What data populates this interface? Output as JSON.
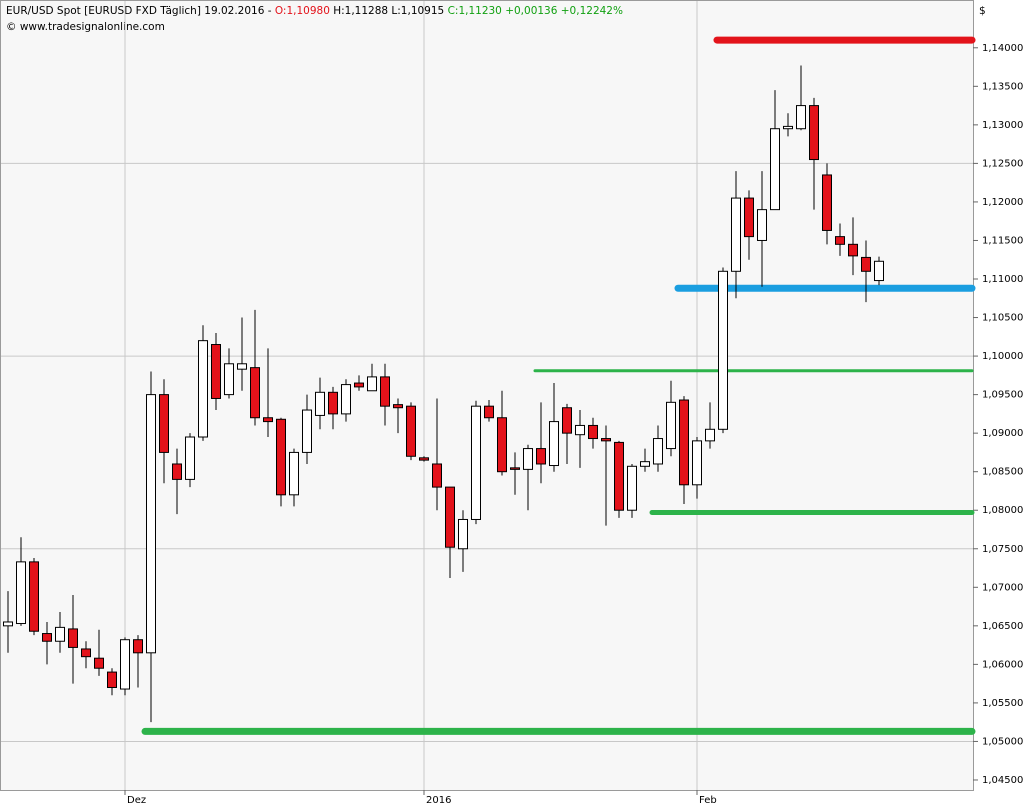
{
  "chart_data": {
    "type": "candlestick",
    "title_parts": [
      {
        "text": "EUR/USD Spot [EURUSD FXD  Täglich] 19.02.2016 - ",
        "color": "#000000"
      },
      {
        "text": "O:1,10980",
        "color": "#e3121a"
      },
      {
        "text": " H:1,11288 L:1,10915 ",
        "color": "#000000"
      },
      {
        "text": "C:1,11230 +0,00136 +0,12242%",
        "color": "#11a011"
      }
    ],
    "subtitle": "© www.tradesignalonline.com",
    "y_unit": "$",
    "categories": [
      null,
      null,
      null,
      null,
      null,
      null,
      null,
      null,
      null,
      "Dez",
      null,
      null,
      null,
      null,
      null,
      null,
      null,
      null,
      null,
      null,
      null,
      null,
      null,
      null,
      null,
      null,
      null,
      null,
      null,
      null,
      null,
      null,
      "2016",
      null,
      null,
      null,
      null,
      null,
      null,
      null,
      null,
      null,
      null,
      null,
      null,
      null,
      null,
      null,
      null,
      null,
      null,
      null,
      null,
      "Feb",
      null,
      null,
      null,
      null,
      null,
      null,
      null,
      null,
      null,
      null,
      null,
      null,
      null,
      null
    ],
    "open": [
      1.065,
      1.0653,
      1.0733,
      1.064,
      1.063,
      1.0646,
      1.062,
      1.0608,
      1.059,
      1.0568,
      1.0632,
      1.0615,
      1.095,
      1.086,
      1.084,
      1.0895,
      1.1015,
      1.095,
      1.0983,
      1.0985,
      1.092,
      1.0918,
      1.082,
      1.0875,
      1.0923,
      1.0953,
      1.0925,
      1.0965,
      1.0955,
      1.0973,
      1.0937,
      1.0935,
      1.0868,
      1.086,
      1.083,
      1.075,
      1.0788,
      1.0935,
      1.092,
      1.0855,
      1.0853,
      1.088,
      1.0858,
      1.0933,
      1.0898,
      1.091,
      1.0893,
      1.0888,
      1.08,
      1.0857,
      1.086,
      1.088,
      1.0943,
      1.0833,
      1.089,
      1.0905,
      1.111,
      1.1205,
      1.115,
      1.119,
      1.1295,
      1.1295,
      1.1325,
      1.1235,
      1.1155,
      1.1145,
      1.1128,
      1.1098
    ],
    "high": [
      1.0695,
      1.0765,
      1.0738,
      1.0655,
      1.0668,
      1.069,
      1.063,
      1.0645,
      1.0595,
      1.0635,
      1.0638,
      1.098,
      1.097,
      1.088,
      1.09,
      1.104,
      1.103,
      1.101,
      1.105,
      1.106,
      1.101,
      1.092,
      1.088,
      1.095,
      1.0972,
      1.096,
      1.097,
      1.0975,
      1.099,
      1.099,
      1.0945,
      1.094,
      1.087,
      1.0945,
      1.083,
      1.08,
      1.0942,
      1.0943,
      1.0955,
      1.0875,
      1.0885,
      1.094,
      1.0965,
      1.0938,
      1.093,
      1.092,
      1.091,
      1.089,
      1.086,
      1.088,
      1.091,
      1.0968,
      1.0948,
      1.0895,
      1.094,
      1.1115,
      1.124,
      1.1215,
      1.124,
      1.1345,
      1.1315,
      1.1377,
      1.1335,
      1.125,
      1.1172,
      1.118,
      1.115,
      1.1129
    ],
    "low": [
      1.0615,
      1.065,
      1.0638,
      1.06,
      1.0615,
      1.0575,
      1.0595,
      1.0585,
      1.056,
      1.056,
      1.057,
      1.0525,
      1.0835,
      1.0795,
      1.083,
      1.089,
      1.093,
      1.0945,
      1.0955,
      1.091,
      1.0895,
      1.0805,
      1.0805,
      1.086,
      1.0905,
      1.0905,
      1.0915,
      1.0955,
      1.0955,
      1.091,
      1.09,
      1.0865,
      1.0863,
      1.08,
      1.0712,
      1.072,
      1.0782,
      1.0915,
      1.0845,
      1.082,
      1.08,
      1.0835,
      1.085,
      1.086,
      1.0855,
      1.088,
      1.078,
      1.079,
      1.079,
      1.085,
      1.085,
      1.087,
      1.0808,
      1.0815,
      1.088,
      1.09,
      1.1075,
      1.1125,
      1.109,
      1.119,
      1.1285,
      1.1293,
      1.119,
      1.1145,
      1.113,
      1.1105,
      1.107,
      1.1092
    ],
    "close": [
      1.0655,
      1.0733,
      1.0643,
      1.063,
      1.0648,
      1.0622,
      1.061,
      1.0595,
      1.057,
      1.0632,
      1.0615,
      1.095,
      1.0875,
      1.084,
      1.0895,
      1.102,
      1.0945,
      1.099,
      1.099,
      1.092,
      1.0915,
      1.082,
      1.0875,
      1.093,
      1.0953,
      1.0925,
      1.0963,
      1.096,
      1.0973,
      1.0935,
      1.0933,
      1.087,
      1.0865,
      1.083,
      1.0752,
      1.0788,
      1.0935,
      1.092,
      1.085,
      1.0853,
      1.088,
      1.086,
      1.0915,
      1.09,
      1.091,
      1.0893,
      1.089,
      1.08,
      1.0857,
      1.0863,
      1.0893,
      1.094,
      1.0833,
      1.089,
      1.0905,
      1.111,
      1.1205,
      1.1155,
      1.119,
      1.1295,
      1.1298,
      1.1325,
      1.1255,
      1.1163,
      1.1145,
      1.113,
      1.111,
      1.1123
    ],
    "up_color": "#ffffff",
    "down_color": "#e3121a",
    "levels": [
      {
        "value": 1.141,
        "color": "#e3141b",
        "from": 55,
        "width": 7
      },
      {
        "value": 1.1088,
        "color": "#1a9ee0",
        "from": 52,
        "width": 7
      },
      {
        "value": 1.0981,
        "color": "#2db34a",
        "from": 41,
        "width": 3
      },
      {
        "value": 1.0797,
        "color": "#2db34a",
        "from": 50,
        "width": 5
      },
      {
        "value": 1.0513,
        "color": "#2db34a",
        "from": 11,
        "width": 7
      }
    ],
    "ylim": [
      1.0437,
      1.1462
    ],
    "yticks": [
      {
        "value": 1.045,
        "label": "1,04500"
      },
      {
        "value": 1.05,
        "label": "1,05000"
      },
      {
        "value": 1.055,
        "label": "1,05500"
      },
      {
        "value": 1.06,
        "label": "1,06000"
      },
      {
        "value": 1.065,
        "label": "1,06500"
      },
      {
        "value": 1.07,
        "label": "1,07000"
      },
      {
        "value": 1.075,
        "label": "1,07500"
      },
      {
        "value": 1.08,
        "label": "1,08000"
      },
      {
        "value": 1.085,
        "label": "1,08500"
      },
      {
        "value": 1.09,
        "label": "1,09000"
      },
      {
        "value": 1.095,
        "label": "1,09500"
      },
      {
        "value": 1.1,
        "label": "1,10000"
      },
      {
        "value": 1.105,
        "label": "1,10500"
      },
      {
        "value": 1.11,
        "label": "1,11000"
      },
      {
        "value": 1.115,
        "label": "1,11500"
      },
      {
        "value": 1.12,
        "label": "1,12000"
      },
      {
        "value": 1.125,
        "label": "1,12500"
      },
      {
        "value": 1.13,
        "label": "1,13000"
      },
      {
        "value": 1.135,
        "label": "1,13500"
      },
      {
        "value": 1.14,
        "label": "1,14000"
      }
    ],
    "ygrid": [
      1.05,
      1.075,
      1.1,
      1.125
    ]
  }
}
